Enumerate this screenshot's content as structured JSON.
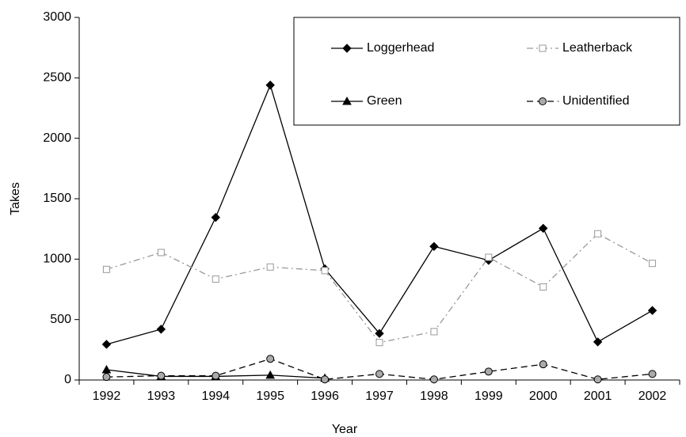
{
  "chart_data": {
    "type": "line",
    "x_label": "Year",
    "y_label": "Takes",
    "categories": [
      "1992",
      "1993",
      "1994",
      "1995",
      "1996",
      "1997",
      "1998",
      "1999",
      "2000",
      "2001",
      "2002"
    ],
    "series": [
      {
        "name": "Loggerhead",
        "color": "#000000",
        "marker": "diamond",
        "dash": "solid",
        "values": [
          295,
          420,
          1345,
          2440,
          920,
          385,
          1105,
          990,
          1255,
          315,
          575
        ]
      },
      {
        "name": "Leatherback",
        "color": "#999999",
        "marker": "square",
        "dash": "dashdot",
        "values": [
          915,
          1055,
          835,
          935,
          905,
          310,
          400,
          1015,
          770,
          1210,
          965
        ]
      },
      {
        "name": "Green",
        "color": "#000000",
        "marker": "triangle",
        "dash": "solid",
        "values": [
          85,
          30,
          30,
          40,
          15,
          null,
          null,
          null,
          null,
          null,
          null
        ]
      },
      {
        "name": "Unidentified",
        "color": "#000000",
        "marker": "circle",
        "dash": "dashed",
        "values": [
          25,
          35,
          35,
          175,
          5,
          50,
          5,
          70,
          130,
          5,
          50
        ]
      }
    ],
    "ylim": [
      0,
      3000
    ],
    "yticks": [
      0,
      500,
      1000,
      1500,
      2000,
      2500,
      3000
    ],
    "legend": "upper right"
  }
}
